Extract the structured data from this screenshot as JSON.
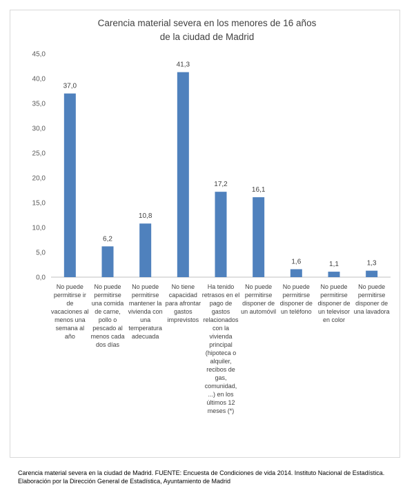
{
  "chart_data": {
    "type": "bar",
    "title_line1": "Carencia material severa en los menores de 16 años",
    "title_line2": "de la ciudad de Madrid",
    "xlabel": "",
    "ylabel": "",
    "ylim": [
      0,
      45
    ],
    "yticks": [
      "0,0",
      "5,0",
      "10,0",
      "15,0",
      "20,0",
      "25,0",
      "30,0",
      "35,0",
      "40,0",
      "45,0"
    ],
    "grid": false,
    "bar_color": "#4f81bd",
    "categories": [
      "No puede permitirse ir de vacaciones al menos una semana al año",
      "No puede permitirse una comida de carne, pollo o pescado al menos cada dos días",
      "No puede permitirse mantener la vivienda con una temperatura adecuada",
      "No tiene capacidad para afrontar gastos imprevistos",
      "Ha tenido retrasos en el pago de gastos relacionados con la vivienda principal (hipoteca o alquiler, recibos de gas, comunidad, ...) en los últimos 12 meses (*)",
      "No puede permitirse disponer de un automóvil",
      "No puede permitirse disponer de un teléfono",
      "No puede permitirse disponer de un televisor en color",
      "No puede permitirse disponer de una lavadora"
    ],
    "values": [
      37.0,
      6.2,
      10.8,
      41.3,
      17.2,
      16.1,
      1.6,
      1.1,
      1.3
    ],
    "data_labels": [
      "37,0",
      "6,2",
      "10,8",
      "41,3",
      "17,2",
      "16,1",
      "1,6",
      "1,1",
      "1,3"
    ]
  },
  "caption": {
    "line1": "Carencia material severa en la ciudad de Madrid. FUENTE: Encuesta de Condiciones de vida 2014. Instituto Nacional de Estadística.",
    "line2": "Elaboración por la Dirección General de Estadística, Ayuntamiento de Madrid"
  }
}
